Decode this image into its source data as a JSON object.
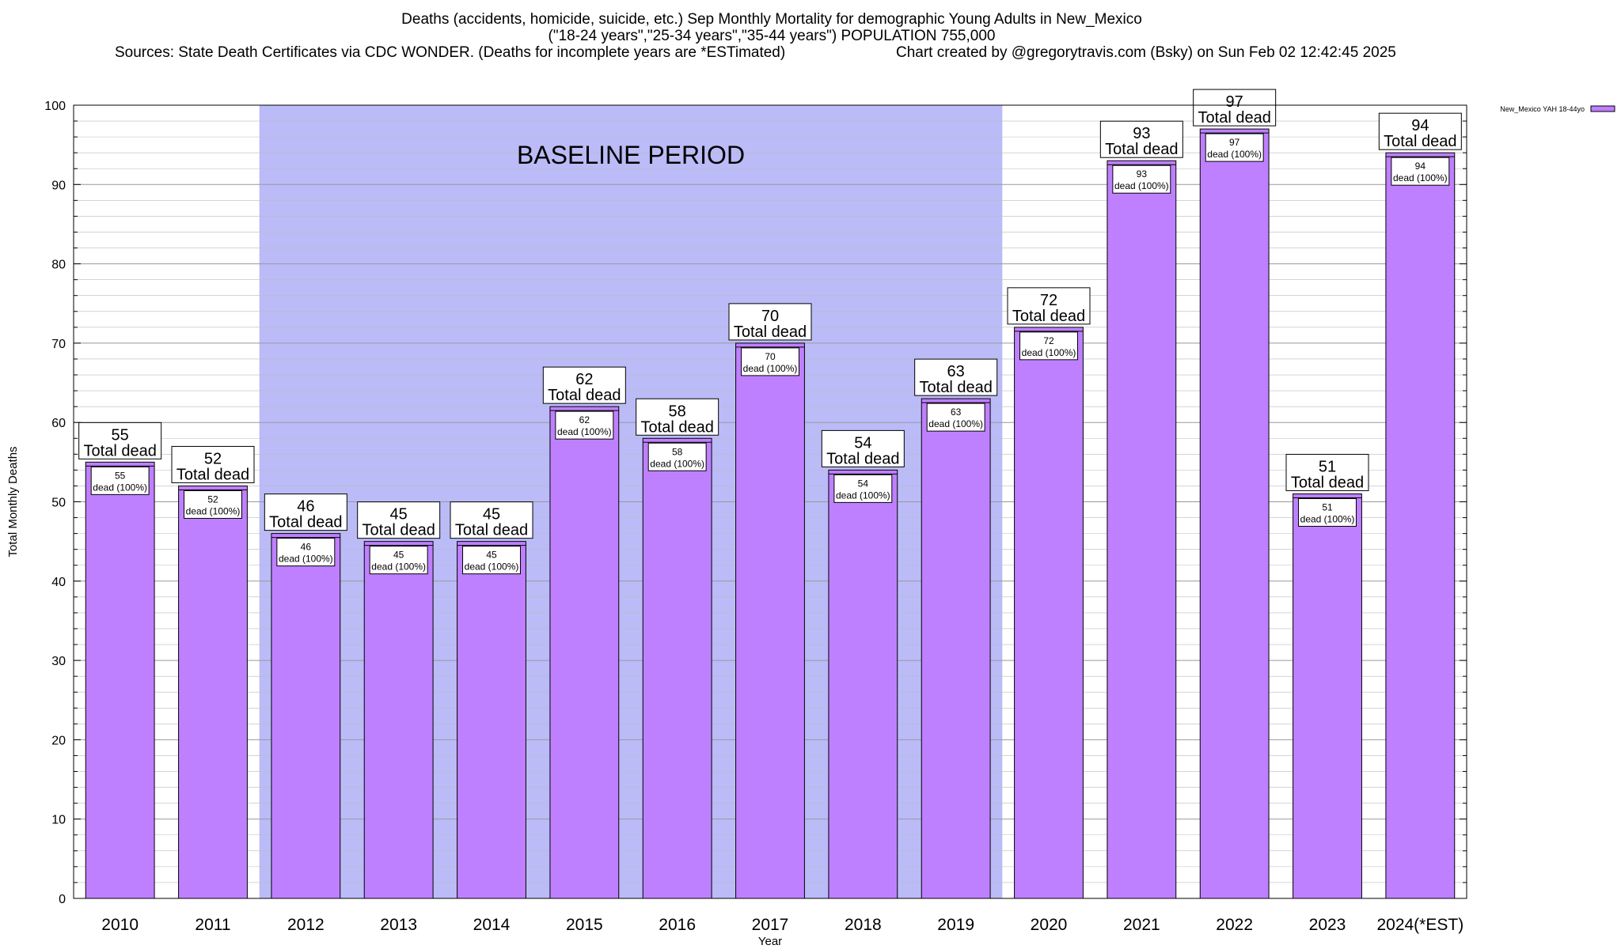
{
  "title": {
    "line1": "Deaths (accidents, homicide, suicide, etc.) Sep Monthly Mortality for demographic Young Adults in New_Mexico",
    "line2": "(\"18-24 years\",\"25-34 years\",\"35-44 years\") POPULATION 755,000",
    "sources": "Sources: State Death Certificates via CDC WONDER. (Deaths for incomplete years are *ESTimated)",
    "credit": "Chart created by @gregorytravis.com (Bsky) on Sun Feb 02 12:42:45 2025"
  },
  "chart_data": {
    "type": "bar",
    "categories": [
      "2010",
      "2011",
      "2012",
      "2013",
      "2014",
      "2015",
      "2016",
      "2017",
      "2018",
      "2019",
      "2020",
      "2021",
      "2022",
      "2023",
      "2024(*EST)"
    ],
    "series": [
      {
        "name": "New_Mexico YAH 18-44yo",
        "values": [
          55,
          52,
          46,
          45,
          45,
          62,
          58,
          70,
          54,
          63,
          72,
          93,
          97,
          51,
          94
        ]
      }
    ],
    "xlabel": "Year",
    "ylabel": "Total Monthly Deaths",
    "ylim": [
      0,
      100
    ],
    "yticks": [
      0,
      10,
      20,
      30,
      40,
      50,
      60,
      70,
      80,
      90,
      100
    ],
    "grid": true,
    "legend_position": "top-right",
    "bar_top_label": "Total dead",
    "bar_inner_label": "dead (100%)",
    "baseline": {
      "label": "BASELINE PERIOD",
      "start": "2012",
      "end": "2019"
    },
    "colors": {
      "bar": "#bf80ff",
      "baseline": "#bbbbf8",
      "grid": "#bbbbbb"
    }
  }
}
